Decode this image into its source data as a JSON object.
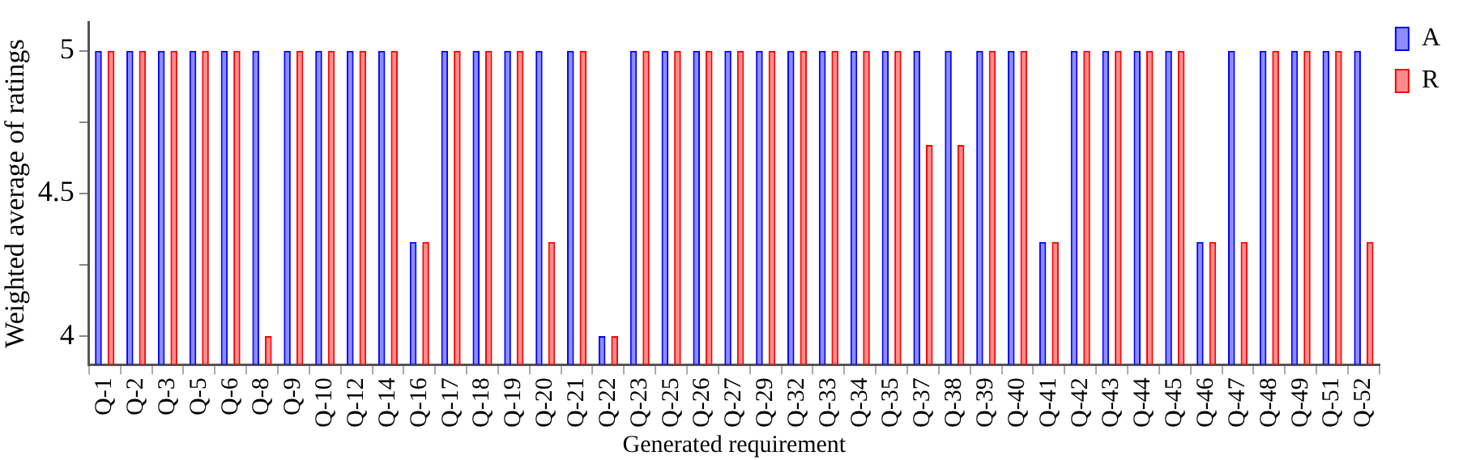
{
  "chart_data": {
    "type": "bar",
    "xlabel": "Generated requirement",
    "ylabel": "Weighted average of ratings",
    "categories": [
      "Q-1",
      "Q-2",
      "Q-3",
      "Q-5",
      "Q-6",
      "Q-8",
      "Q-9",
      "Q-10",
      "Q-12",
      "Q-14",
      "Q-16",
      "Q-17",
      "Q-18",
      "Q-19",
      "Q-20",
      "Q-21",
      "Q-22",
      "Q-23",
      "Q-25",
      "Q-26",
      "Q-27",
      "Q-29",
      "Q-32",
      "Q-33",
      "Q-34",
      "Q-35",
      "Q-37",
      "Q-38",
      "Q-39",
      "Q-40",
      "Q-41",
      "Q-42",
      "Q-43",
      "Q-44",
      "Q-45",
      "Q-46",
      "Q-47",
      "Q-48",
      "Q-49",
      "Q-51",
      "Q-52"
    ],
    "series": [
      {
        "name": "A",
        "color": "#0000ff",
        "values": [
          5,
          5,
          5,
          5,
          5,
          5,
          5,
          5,
          5,
          5,
          4.33,
          5,
          5,
          5,
          5,
          5,
          4,
          5,
          5,
          5,
          5,
          5,
          5,
          5,
          5,
          5,
          5,
          5,
          5,
          5,
          4.33,
          5,
          5,
          5,
          5,
          4.33,
          5,
          5,
          5,
          5,
          5
        ]
      },
      {
        "name": "R",
        "color": "#ff0000",
        "values": [
          5,
          5,
          5,
          5,
          5,
          4,
          5,
          5,
          5,
          5,
          4.33,
          5,
          5,
          5,
          4.33,
          5,
          4,
          5,
          5,
          5,
          5,
          5,
          5,
          5,
          5,
          5,
          4.67,
          4.67,
          5,
          5,
          4.33,
          5,
          5,
          5,
          5,
          4.33,
          4.33,
          5,
          5,
          5,
          4.33
        ]
      }
    ],
    "ylim": [
      3.9,
      5.1
    ],
    "yticks": [
      4,
      {
        "value": 4.25,
        "label": null
      },
      4.5,
      {
        "value": 4.75,
        "label": null
      },
      5
    ],
    "grid": false,
    "legend": "top right"
  }
}
